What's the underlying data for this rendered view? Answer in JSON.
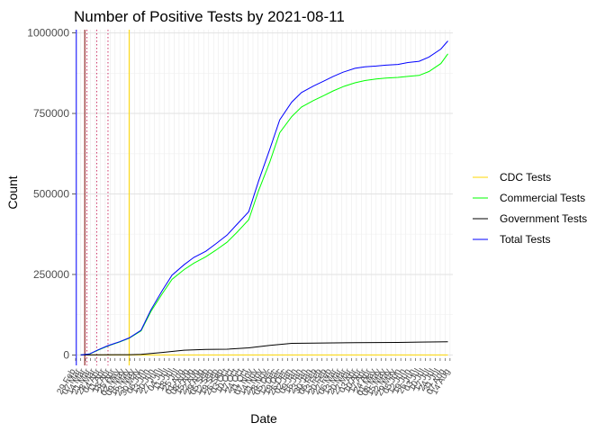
{
  "chart_data": {
    "type": "line",
    "title": "Number of Positive Tests by  2021-08-11",
    "xlabel": "Date",
    "ylabel": "Count",
    "x_range": [
      "2020-02-29",
      "2021-08-18"
    ],
    "ylim": [
      -10000,
      1010000
    ],
    "y_ticks": [
      0,
      250000,
      500000,
      750000,
      1000000
    ],
    "y_tick_labels": [
      "0",
      "250000",
      "500000",
      "750000",
      "1000000"
    ],
    "grid": true,
    "legend_position": "right",
    "series": [
      {
        "name": "CDC Tests",
        "color": "#FFD700",
        "x": [
          "2020-03-15",
          "2021-08-11"
        ],
        "values": [
          0,
          0
        ]
      },
      {
        "name": "Commercial Tests",
        "color": "#00FF00",
        "x": [
          "2020-03-07",
          "2020-03-20",
          "2020-04-01",
          "2020-04-15",
          "2020-05-01",
          "2020-05-15",
          "2020-06-01",
          "2020-06-15",
          "2020-07-01",
          "2020-07-15",
          "2020-08-01",
          "2020-08-15",
          "2020-09-01",
          "2020-09-15",
          "2020-10-01",
          "2020-10-15",
          "2020-11-01",
          "2020-11-15",
          "2020-12-01",
          "2020-12-15",
          "2021-01-01",
          "2021-01-15",
          "2021-02-01",
          "2021-02-15",
          "2021-03-01",
          "2021-03-15",
          "2021-04-01",
          "2021-04-15",
          "2021-05-01",
          "2021-05-15",
          "2021-06-01",
          "2021-06-15",
          "2021-07-01",
          "2021-07-15",
          "2021-08-01",
          "2021-08-11"
        ],
        "values": [
          0,
          3000,
          15000,
          28000,
          40000,
          52000,
          75000,
          135000,
          190000,
          235000,
          265000,
          285000,
          305000,
          325000,
          350000,
          380000,
          420000,
          510000,
          600000,
          690000,
          740000,
          770000,
          790000,
          805000,
          820000,
          833000,
          845000,
          852000,
          857000,
          860000,
          862000,
          865000,
          868000,
          880000,
          905000,
          935000
        ]
      },
      {
        "name": "Government Tests",
        "color": "#000000",
        "x": [
          "2020-03-07",
          "2020-04-01",
          "2020-05-15",
          "2020-06-01",
          "2020-07-01",
          "2020-08-01",
          "2020-09-01",
          "2020-10-01",
          "2020-11-01",
          "2020-12-01",
          "2021-01-01",
          "2021-02-01",
          "2021-03-01",
          "2021-04-01",
          "2021-05-01",
          "2021-06-01",
          "2021-07-01",
          "2021-08-11"
        ],
        "values": [
          0,
          500,
          1000,
          2000,
          8000,
          15000,
          17000,
          18000,
          22000,
          30000,
          36000,
          37000,
          37500,
          38000,
          38500,
          39000,
          40000,
          41000
        ]
      },
      {
        "name": "Total Tests",
        "color": "#0000FF",
        "x": [
          "2020-03-07",
          "2020-03-20",
          "2020-04-01",
          "2020-04-15",
          "2020-05-01",
          "2020-05-15",
          "2020-06-01",
          "2020-06-15",
          "2020-07-01",
          "2020-07-15",
          "2020-08-01",
          "2020-08-15",
          "2020-09-01",
          "2020-09-15",
          "2020-10-01",
          "2020-10-15",
          "2020-11-01",
          "2020-11-15",
          "2020-12-01",
          "2020-12-15",
          "2021-01-01",
          "2021-01-15",
          "2021-02-01",
          "2021-02-15",
          "2021-03-01",
          "2021-03-15",
          "2021-04-01",
          "2021-04-15",
          "2021-05-01",
          "2021-05-15",
          "2021-06-01",
          "2021-06-15",
          "2021-07-01",
          "2021-07-15",
          "2021-08-01",
          "2021-08-11"
        ],
        "values": [
          0,
          3500,
          16000,
          29000,
          41000,
          53000,
          77000,
          140000,
          200000,
          248000,
          280000,
          303000,
          322000,
          345000,
          372000,
          405000,
          445000,
          540000,
          640000,
          730000,
          785000,
          815000,
          835000,
          850000,
          865000,
          878000,
          890000,
          895000,
          897000,
          900000,
          902000,
          908000,
          912000,
          925000,
          950000,
          975000
        ]
      }
    ],
    "vlines": [
      {
        "x": "2020-03-01",
        "color": "#0000FF",
        "style": "solid"
      },
      {
        "x": "2020-03-13",
        "color": "#800000",
        "style": "solid"
      },
      {
        "x": "2020-03-16",
        "color": "#CC3366",
        "style": "dotted"
      },
      {
        "x": "2020-03-30",
        "color": "#CC3366",
        "style": "dotted"
      },
      {
        "x": "2020-04-15",
        "color": "#CC3366",
        "style": "dotted"
      },
      {
        "x": "2020-05-15",
        "color": "#FFD700",
        "style": "solid"
      }
    ]
  }
}
